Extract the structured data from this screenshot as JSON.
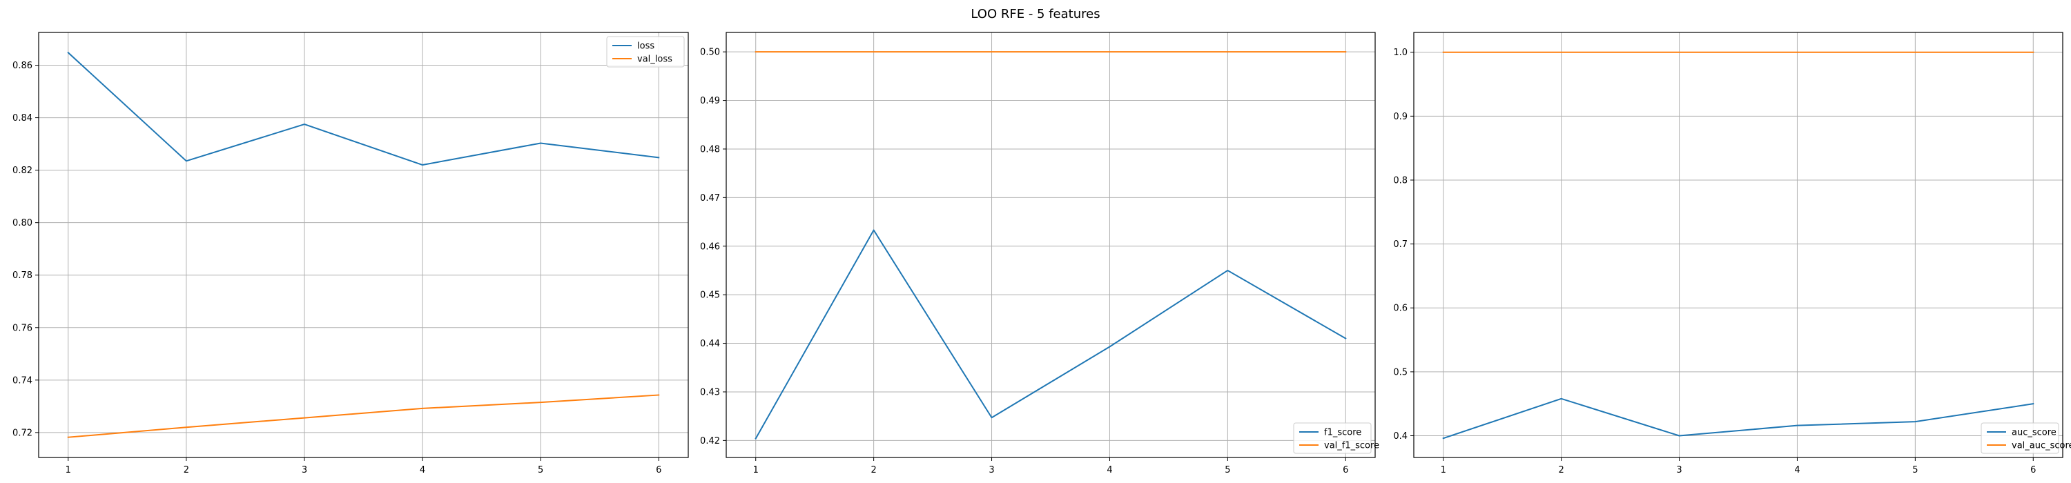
{
  "figure": {
    "title": "LOO RFE - 5 features"
  },
  "colors": {
    "train": "#1f77b4",
    "val": "#ff7f0e",
    "grid": "#b0b0b0",
    "axes": "#000000"
  },
  "chart_data": [
    {
      "type": "line",
      "title": "",
      "xlabel": "",
      "ylabel": "",
      "x": [
        1,
        2,
        3,
        4,
        5,
        6
      ],
      "xlim": [
        0.75,
        6.25
      ],
      "ylim": [
        0.7105,
        0.8725
      ],
      "xticks": [
        "1",
        "2",
        "3",
        "4",
        "5",
        "6"
      ],
      "yticks": [
        "0.72",
        "0.74",
        "0.76",
        "0.78",
        "0.80",
        "0.82",
        "0.84",
        "0.86"
      ],
      "grid": true,
      "legend": "top-right",
      "series": [
        {
          "name": "loss",
          "color": "#1f77b4",
          "values": [
            0.8648,
            0.8235,
            0.8375,
            0.822,
            0.8303,
            0.8248
          ]
        },
        {
          "name": "val_loss",
          "color": "#ff7f0e",
          "values": [
            0.7182,
            0.722,
            0.7256,
            0.7292,
            0.7315,
            0.7343
          ]
        }
      ]
    },
    {
      "type": "line",
      "title": "",
      "xlabel": "",
      "ylabel": "",
      "x": [
        1,
        2,
        3,
        4,
        5,
        6
      ],
      "xlim": [
        0.75,
        6.25
      ],
      "ylim": [
        0.4165,
        0.504
      ],
      "xticks": [
        "1",
        "2",
        "3",
        "4",
        "5",
        "6"
      ],
      "yticks": [
        "0.42",
        "0.43",
        "0.44",
        "0.45",
        "0.46",
        "0.47",
        "0.48",
        "0.49",
        "0.50"
      ],
      "grid": true,
      "legend": "bottom-right",
      "series": [
        {
          "name": "f1_score",
          "color": "#1f77b4",
          "values": [
            0.4204,
            0.4633,
            0.4247,
            0.4393,
            0.455,
            0.441
          ]
        },
        {
          "name": "val_f1_score",
          "color": "#ff7f0e",
          "values": [
            0.5,
            0.5,
            0.5,
            0.5,
            0.5,
            0.5
          ]
        }
      ]
    },
    {
      "type": "line",
      "title": "",
      "xlabel": "",
      "ylabel": "",
      "x": [
        1,
        2,
        3,
        4,
        5,
        6
      ],
      "xlim": [
        0.75,
        6.25
      ],
      "ylim": [
        0.366,
        1.031
      ],
      "xticks": [
        "1",
        "2",
        "3",
        "4",
        "5",
        "6"
      ],
      "yticks": [
        "0.4",
        "0.5",
        "0.6",
        "0.7",
        "0.8",
        "0.9",
        "1.0"
      ],
      "grid": true,
      "legend": "bottom-right",
      "series": [
        {
          "name": "auc_score",
          "color": "#1f77b4",
          "values": [
            0.396,
            0.458,
            0.4,
            0.416,
            0.422,
            0.45
          ]
        },
        {
          "name": "val_auc_score",
          "color": "#ff7f0e",
          "values": [
            1.0,
            1.0,
            1.0,
            1.0,
            1.0,
            1.0
          ]
        }
      ]
    }
  ]
}
